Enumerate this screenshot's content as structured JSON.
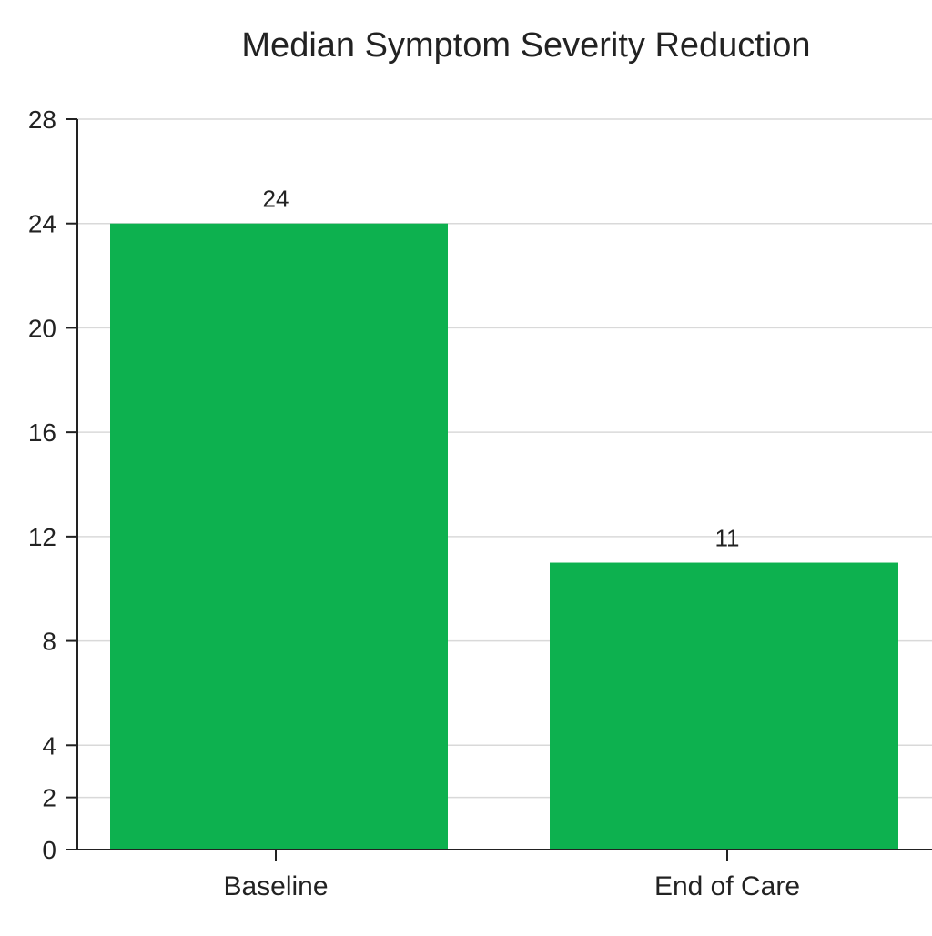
{
  "chart_data": {
    "type": "bar",
    "title": "Median Symptom Severity Reduction",
    "xlabel": "",
    "ylabel": "",
    "categories": [
      "Baseline",
      "End of Care"
    ],
    "values": [
      24,
      11
    ],
    "value_labels": [
      "24",
      "11"
    ],
    "ylim": [
      0,
      28
    ],
    "yticks": [
      0,
      2,
      4,
      8,
      12,
      16,
      20,
      24,
      28
    ],
    "ytick_labels": [
      "0",
      "2",
      "4",
      "8",
      "12",
      "16",
      "20",
      "24",
      "28"
    ],
    "grid": true,
    "legend": "none",
    "bar_color": "#0db14f"
  }
}
